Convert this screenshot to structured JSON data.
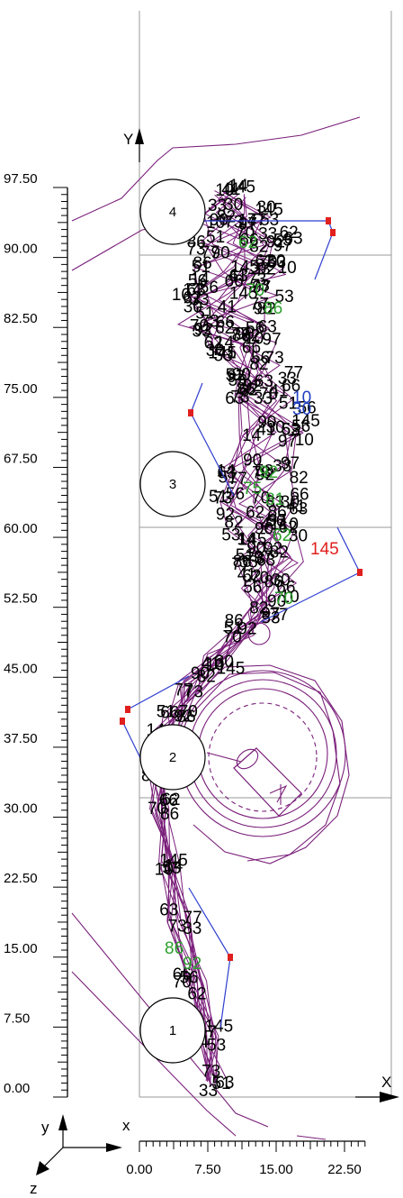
{
  "colors": {
    "frame_gray": "#9a9a9a",
    "path_purple": "#7a1f7a",
    "link_blue": "#2f3fd0",
    "marker_red": "#e0201e",
    "label_green": "#2ca02c"
  },
  "axes": {
    "y_letter": "Y",
    "x_letter": "X",
    "triad_y": "y",
    "triad_x": "x",
    "triad_z": "z"
  },
  "y_ruler": {
    "labels": [
      "97.50",
      "90.00",
      "82.50",
      "75.00",
      "67.50",
      "60.00",
      "52.50",
      "45.00",
      "37.50",
      "30.00",
      "22.50",
      "15.00",
      "7.50",
      "0.00"
    ]
  },
  "x_ruler": {
    "labels": [
      "0.00",
      "7.50",
      "15.00",
      "22.50"
    ]
  },
  "circles": [
    {
      "id": "1"
    },
    {
      "id": "2"
    },
    {
      "id": "3"
    },
    {
      "id": "4"
    }
  ],
  "cluster_labels": {
    "visible_numbers": [
      "51",
      "63",
      "33",
      "73",
      "77",
      "82",
      "90",
      "97",
      "53",
      "14",
      "145",
      "10",
      "30",
      "41",
      "56",
      "62",
      "66",
      "70",
      "86",
      "92"
    ],
    "green_numbers": [
      "62",
      "70",
      "86",
      "92",
      "75",
      "81"
    ],
    "blue_numbers": [
      "10",
      "30"
    ],
    "red_numbers": [
      "145"
    ]
  }
}
